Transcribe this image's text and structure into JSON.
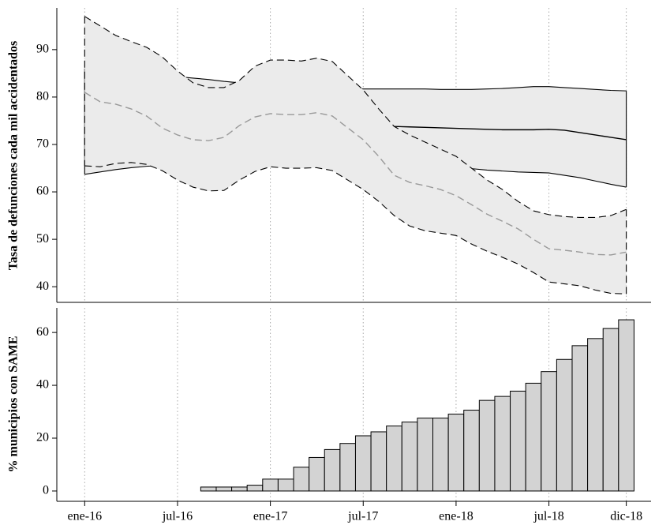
{
  "chart_data": [
    {
      "type": "band",
      "ylabel": "Tasa de defunciones cada mil accidentados",
      "x": [
        0,
        1,
        2,
        3,
        4,
        5,
        6,
        7,
        8,
        9,
        10,
        11,
        12,
        13,
        14,
        15,
        16,
        17,
        18,
        19,
        20,
        21,
        22,
        23,
        24,
        25,
        26,
        27,
        28,
        29,
        30,
        31,
        32,
        33,
        34,
        35
      ],
      "xlim": [
        -1.8,
        36.6
      ],
      "xticks": [
        0,
        6,
        12,
        18,
        24,
        30,
        35
      ],
      "ylim": [
        36.7,
        98.8
      ],
      "yticks": [
        40,
        50,
        60,
        70,
        80,
        90
      ],
      "grid": "x",
      "fill": "#ebebeb",
      "bands": [
        {
          "line_style": "solid",
          "color": "#000000",
          "center_color": "#000000",
          "upper": [
            86,
            85.7,
            85.4,
            85.1,
            84.8,
            84.6,
            84.3,
            84,
            83.7,
            83.3,
            83,
            82.8,
            82.6,
            82.4,
            82.2,
            82,
            81.9,
            81.8,
            81.7,
            81.7,
            81.7,
            81.7,
            81.7,
            81.6,
            81.6,
            81.6,
            81.7,
            81.8,
            82,
            82.2,
            82.2,
            82,
            81.8,
            81.6,
            81.4,
            81.3
          ],
          "center": [
            74,
            74,
            74,
            74,
            74,
            74,
            74,
            74,
            74,
            74,
            74,
            74,
            74,
            74,
            74,
            74,
            74,
            74,
            74,
            74,
            73.8,
            73.7,
            73.6,
            73.5,
            73.4,
            73.3,
            73.2,
            73.1,
            73.1,
            73.1,
            73.2,
            73,
            72.5,
            72,
            71.5,
            71
          ],
          "lower": [
            63.7,
            64.2,
            64.7,
            65.1,
            65.4,
            65.6,
            65.7,
            65.7,
            65.7,
            65.7,
            65.7,
            65.7,
            65.7,
            65.7,
            65.7,
            65.7,
            65.7,
            65.7,
            65.7,
            65.7,
            65.5,
            65.4,
            65.3,
            65.2,
            65.1,
            64.9,
            64.6,
            64.4,
            64.2,
            64.1,
            64,
            63.5,
            63,
            62.3,
            61.6,
            61
          ]
        },
        {
          "line_style": "dashed",
          "color": "#000000",
          "center_color": "#999999",
          "upper": [
            97,
            95,
            93,
            91.7,
            90.5,
            88.5,
            85.5,
            83,
            82,
            82,
            83.5,
            86.5,
            87.8,
            87.8,
            87.6,
            88.2,
            87.5,
            84.5,
            81.5,
            77.5,
            73.8,
            72,
            70.5,
            69,
            67.5,
            65,
            62.5,
            60.5,
            58,
            56,
            55.2,
            54.8,
            54.6,
            54.6,
            55,
            56.3
          ],
          "center": [
            81,
            79,
            78.5,
            77.5,
            76,
            73.5,
            72,
            71,
            70.8,
            71.5,
            74,
            75.8,
            76.5,
            76.3,
            76.3,
            76.7,
            76,
            73.5,
            71,
            67.5,
            63.5,
            62,
            61.3,
            60.5,
            59.2,
            57.3,
            55.3,
            53.8,
            52.2,
            50,
            48,
            47.7,
            47.3,
            46.8,
            46.7,
            47.3
          ],
          "lower": [
            65.5,
            65.3,
            66,
            66.2,
            65.8,
            64.5,
            62.5,
            61,
            60.2,
            60.3,
            62.5,
            64.3,
            65.3,
            65,
            65,
            65.1,
            64.5,
            62.5,
            60.5,
            58,
            55,
            52.8,
            51.8,
            51.3,
            50.8,
            49,
            47.5,
            46.2,
            44.8,
            43,
            41,
            40.6,
            40.2,
            39.3,
            38.6,
            38.5
          ]
        }
      ]
    },
    {
      "type": "bar",
      "ylabel": "% municipios con SAME",
      "x": [
        8,
        9,
        10,
        11,
        12,
        13,
        14,
        15,
        16,
        17,
        18,
        19,
        20,
        21,
        22,
        23,
        24,
        25,
        26,
        27,
        28,
        29,
        30,
        31,
        32,
        33,
        34,
        35
      ],
      "values": [
        1.5,
        1.5,
        1.5,
        2.2,
        4.5,
        4.5,
        9,
        12.7,
        15.7,
        18,
        20.9,
        22.4,
        24.6,
        26.1,
        27.6,
        27.6,
        29.1,
        30.6,
        34.3,
        35.8,
        37.8,
        40.8,
        45.2,
        49.8,
        55,
        57.7,
        61.5,
        64.8
      ],
      "color": "#d3d3d3",
      "edgecolor": "#000000",
      "xlim": [
        -1.8,
        36.6
      ],
      "xticks": [
        {
          "value": 0,
          "label": "ene-16"
        },
        {
          "value": 6,
          "label": "jul-16"
        },
        {
          "value": 12,
          "label": "ene-17"
        },
        {
          "value": 18,
          "label": "jul-17"
        },
        {
          "value": 24,
          "label": "ene-18"
        },
        {
          "value": 30,
          "label": "jul-18"
        },
        {
          "value": 35,
          "label": "dic-18"
        }
      ],
      "ylim": [
        -3.9,
        69.3
      ],
      "yticks": [
        0,
        20,
        40,
        60
      ],
      "grid": "x"
    }
  ]
}
